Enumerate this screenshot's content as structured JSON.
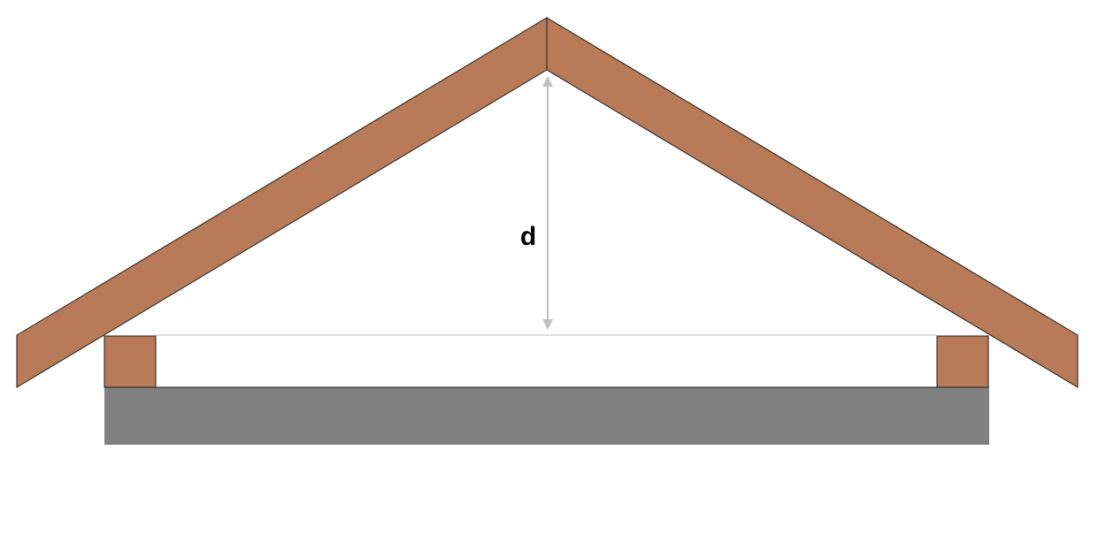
{
  "diagram": {
    "dimension_label": "d"
  },
  "colors": {
    "timber": "#B97B57",
    "wall": "#808080",
    "outline": "#1a1a1a",
    "dimension_line": "#c0c0c0",
    "ceiling_line": "#bdbdbd",
    "label": "#000000"
  }
}
